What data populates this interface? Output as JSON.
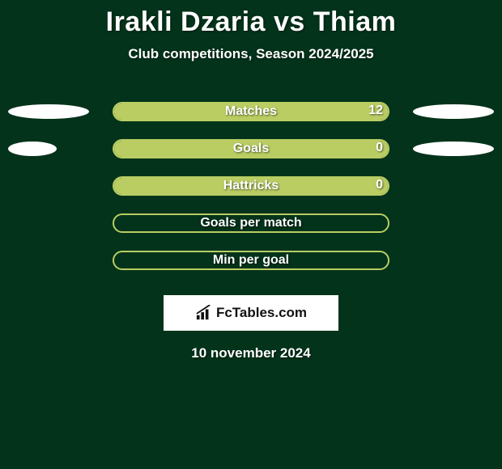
{
  "background_color": "#03331a",
  "title": "Irakli Dzaria vs Thiam",
  "title_fontsize": 34,
  "title_color": "#ffffff",
  "subtitle": "Club competitions, Season 2024/2025",
  "subtitle_fontsize": 17,
  "subtitle_color": "#ffffff",
  "side_ellipse_color": "#ffffff",
  "bar_center_width": 342,
  "bar_border_radius": 12,
  "stats": [
    {
      "label": "Matches",
      "value_left": "",
      "value_right": "12",
      "fill_left_pct": 0,
      "fill_right_pct": 100,
      "fill_left_color": "#b9cd63",
      "fill_right_color": "#b9cd63",
      "border_color": "#b9cd63",
      "ellipse_left_width": 100,
      "ellipse_right_width": 100,
      "show_ellipse_left": true,
      "show_ellipse_right": true
    },
    {
      "label": "Goals",
      "value_left": "",
      "value_right": "0",
      "fill_left_pct": 0,
      "fill_right_pct": 100,
      "fill_left_color": "#b9cd63",
      "fill_right_color": "#b9cd63",
      "border_color": "#b9cd63",
      "ellipse_left_width": 60,
      "ellipse_right_width": 100,
      "show_ellipse_left": true,
      "show_ellipse_right": true
    },
    {
      "label": "Hattricks",
      "value_left": "",
      "value_right": "0",
      "fill_left_pct": 0,
      "fill_right_pct": 100,
      "fill_left_color": "#b9cd63",
      "fill_right_color": "#b9cd63",
      "border_color": "#b9cd63",
      "ellipse_left_width": 0,
      "ellipse_right_width": 0,
      "show_ellipse_left": false,
      "show_ellipse_right": false
    },
    {
      "label": "Goals per match",
      "value_left": "",
      "value_right": "",
      "fill_left_pct": 0,
      "fill_right_pct": 0,
      "fill_left_color": "#b9cd63",
      "fill_right_color": "#b9cd63",
      "border_color": "#b9cd63",
      "ellipse_left_width": 0,
      "ellipse_right_width": 0,
      "show_ellipse_left": false,
      "show_ellipse_right": false
    },
    {
      "label": "Min per goal",
      "value_left": "",
      "value_right": "",
      "fill_left_pct": 0,
      "fill_right_pct": 0,
      "fill_left_color": "#b9cd63",
      "fill_right_color": "#b9cd63",
      "border_color": "#b9cd63",
      "ellipse_left_width": 0,
      "ellipse_right_width": 0,
      "show_ellipse_left": false,
      "show_ellipse_right": false
    }
  ],
  "logo": {
    "box_bg": "#ffffff",
    "text": "FcTables.com",
    "text_color": "#111111",
    "icon_name": "bar-chart-icon",
    "icon_color": "#111111"
  },
  "date_text": "10 november 2024",
  "date_color": "#ffffff"
}
